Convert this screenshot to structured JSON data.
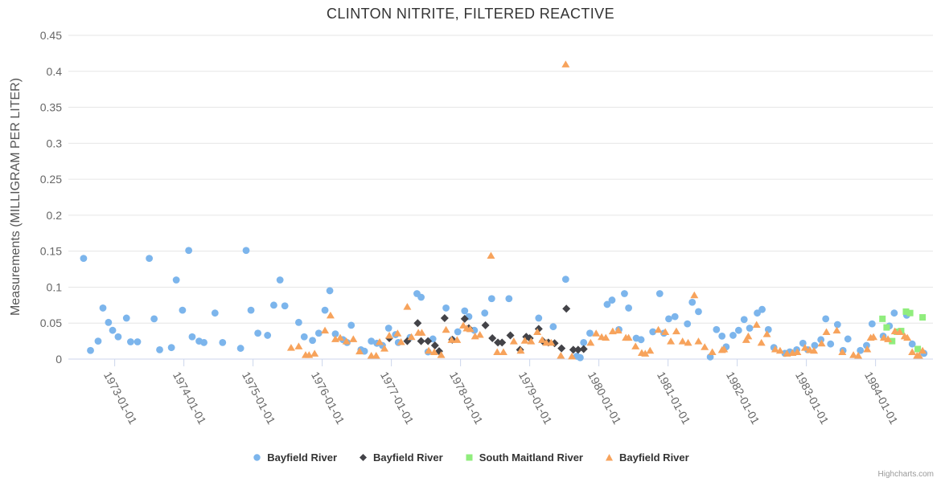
{
  "chart_data": {
    "type": "scatter",
    "title": "CLINTON NITRITE, FILTERED REACTIVE",
    "xlabel": "",
    "ylabel": "Measurements (MILLIGRAM PER LITER)",
    "credits": "Highcharts.com",
    "grid": true,
    "legend_position": "bottom",
    "xlim": [
      1972.33,
      1984.83
    ],
    "ylim": [
      0,
      0.45
    ],
    "y_ticks": [
      0,
      0.05,
      0.1,
      0.15,
      0.2,
      0.25,
      0.3,
      0.35,
      0.4,
      0.45
    ],
    "x_ticks": [
      {
        "year": 1973,
        "label": "1973-01-01"
      },
      {
        "year": 1974,
        "label": "1974-01-01"
      },
      {
        "year": 1975,
        "label": "1975-01-01"
      },
      {
        "year": 1976,
        "label": "1976-01-01"
      },
      {
        "year": 1977,
        "label": "1977-01-01"
      },
      {
        "year": 1978,
        "label": "1978-01-01"
      },
      {
        "year": 1979,
        "label": "1979-01-01"
      },
      {
        "year": 1980,
        "label": "1980-01-01"
      },
      {
        "year": 1981,
        "label": "1981-01-01"
      },
      {
        "year": 1982,
        "label": "1982-01-01"
      },
      {
        "year": 1983,
        "label": "1983-01-01"
      },
      {
        "year": 1984,
        "label": "1984-01-01"
      }
    ],
    "style": {
      "grid_color": "#e6e6e6",
      "axis_line_color": "#ccd6eb",
      "tick_label_color": "#666666",
      "title_color": "#333333"
    },
    "series": [
      {
        "name": "Bayfield River",
        "marker": "circle",
        "color": "#7cb5ec",
        "data": [
          [
            1972.55,
            0.14
          ],
          [
            1972.65,
            0.012
          ],
          [
            1972.76,
            0.025
          ],
          [
            1972.83,
            0.071
          ],
          [
            1972.91,
            0.051
          ],
          [
            1972.97,
            0.04
          ],
          [
            1973.05,
            0.031
          ],
          [
            1973.17,
            0.057
          ],
          [
            1973.23,
            0.024
          ],
          [
            1973.33,
            0.024
          ],
          [
            1973.5,
            0.14
          ],
          [
            1973.57,
            0.056
          ],
          [
            1973.65,
            0.013
          ],
          [
            1973.82,
            0.016
          ],
          [
            1973.89,
            0.11
          ],
          [
            1973.98,
            0.068
          ],
          [
            1974.07,
            0.151
          ],
          [
            1974.12,
            0.031
          ],
          [
            1974.22,
            0.025
          ],
          [
            1974.29,
            0.023
          ],
          [
            1974.45,
            0.064
          ],
          [
            1974.56,
            0.023
          ],
          [
            1974.82,
            0.015
          ],
          [
            1974.9,
            0.151
          ],
          [
            1974.97,
            0.068
          ],
          [
            1975.07,
            0.036
          ],
          [
            1975.21,
            0.033
          ],
          [
            1975.3,
            0.075
          ],
          [
            1975.39,
            0.11
          ],
          [
            1975.46,
            0.074
          ],
          [
            1975.66,
            0.051
          ],
          [
            1975.74,
            0.031
          ],
          [
            1975.86,
            0.026
          ],
          [
            1975.95,
            0.036
          ],
          [
            1976.04,
            0.068
          ],
          [
            1976.11,
            0.095
          ],
          [
            1976.19,
            0.035
          ],
          [
            1976.3,
            0.027
          ],
          [
            1976.36,
            0.023
          ],
          [
            1976.42,
            0.047
          ],
          [
            1976.56,
            0.013
          ],
          [
            1976.61,
            0.011
          ],
          [
            1976.71,
            0.025
          ],
          [
            1976.79,
            0.022
          ],
          [
            1976.87,
            0.019
          ],
          [
            1976.96,
            0.043
          ],
          [
            1977.06,
            0.034
          ],
          [
            1977.1,
            0.023
          ],
          [
            1977.27,
            0.03
          ],
          [
            1977.37,
            0.091
          ],
          [
            1977.43,
            0.086
          ],
          [
            1977.53,
            0.01
          ],
          [
            1977.6,
            0.028
          ],
          [
            1977.79,
            0.071
          ],
          [
            1977.88,
            0.027
          ],
          [
            1977.96,
            0.038
          ],
          [
            1978.06,
            0.067
          ],
          [
            1978.12,
            0.059
          ],
          [
            1978.2,
            0.04
          ],
          [
            1978.35,
            0.064
          ],
          [
            1978.45,
            0.084
          ],
          [
            1978.7,
            0.084
          ],
          [
            1979.13,
            0.057
          ],
          [
            1979.34,
            0.045
          ],
          [
            1979.52,
            0.111
          ],
          [
            1979.68,
            0.004
          ],
          [
            1979.73,
            0.002
          ],
          [
            1979.78,
            0.023
          ],
          [
            1979.87,
            0.036
          ],
          [
            1980.12,
            0.076
          ],
          [
            1980.19,
            0.082
          ],
          [
            1980.29,
            0.041
          ],
          [
            1980.37,
            0.091
          ],
          [
            1980.43,
            0.071
          ],
          [
            1980.54,
            0.029
          ],
          [
            1980.61,
            0.027
          ],
          [
            1980.78,
            0.038
          ],
          [
            1980.88,
            0.091
          ],
          [
            1980.94,
            0.036
          ],
          [
            1981.01,
            0.056
          ],
          [
            1981.1,
            0.059
          ],
          [
            1981.28,
            0.049
          ],
          [
            1981.35,
            0.079
          ],
          [
            1981.44,
            0.066
          ],
          [
            1981.61,
            0.003
          ],
          [
            1981.7,
            0.041
          ],
          [
            1981.78,
            0.032
          ],
          [
            1981.84,
            0.017
          ],
          [
            1981.94,
            0.033
          ],
          [
            1982.02,
            0.04
          ],
          [
            1982.1,
            0.055
          ],
          [
            1982.18,
            0.043
          ],
          [
            1982.29,
            0.064
          ],
          [
            1982.36,
            0.069
          ],
          [
            1982.45,
            0.041
          ],
          [
            1982.53,
            0.016
          ],
          [
            1982.69,
            0.008
          ],
          [
            1982.76,
            0.01
          ],
          [
            1982.86,
            0.013
          ],
          [
            1982.95,
            0.022
          ],
          [
            1983.02,
            0.013
          ],
          [
            1983.12,
            0.019
          ],
          [
            1983.21,
            0.027
          ],
          [
            1983.28,
            0.056
          ],
          [
            1983.35,
            0.021
          ],
          [
            1983.45,
            0.048
          ],
          [
            1983.53,
            0.012
          ],
          [
            1983.6,
            0.028
          ],
          [
            1983.78,
            0.012
          ],
          [
            1983.87,
            0.019
          ],
          [
            1983.95,
            0.049
          ],
          [
            1984.11,
            0.032
          ],
          [
            1984.2,
            0.046
          ],
          [
            1984.27,
            0.064
          ],
          [
            1984.45,
            0.061
          ],
          [
            1984.53,
            0.021
          ],
          [
            1984.7,
            0.008
          ]
        ]
      },
      {
        "name": "Bayfield River",
        "marker": "diamond",
        "color": "#434348",
        "data": [
          [
            1976.97,
            0.029
          ],
          [
            1977.23,
            0.025
          ],
          [
            1977.38,
            0.05
          ],
          [
            1977.43,
            0.025
          ],
          [
            1977.53,
            0.025
          ],
          [
            1977.63,
            0.019
          ],
          [
            1977.69,
            0.011
          ],
          [
            1977.77,
            0.057
          ],
          [
            1977.88,
            0.027
          ],
          [
            1978.06,
            0.056
          ],
          [
            1978.12,
            0.043
          ],
          [
            1978.36,
            0.047
          ],
          [
            1978.46,
            0.029
          ],
          [
            1978.54,
            0.023
          ],
          [
            1978.6,
            0.023
          ],
          [
            1978.72,
            0.033
          ],
          [
            1978.86,
            0.013
          ],
          [
            1978.95,
            0.031
          ],
          [
            1979.0,
            0.029
          ],
          [
            1979.13,
            0.042
          ],
          [
            1979.19,
            0.025
          ],
          [
            1979.27,
            0.023
          ],
          [
            1979.36,
            0.022
          ],
          [
            1979.46,
            0.015
          ],
          [
            1979.53,
            0.07
          ],
          [
            1979.63,
            0.013
          ],
          [
            1979.7,
            0.013
          ],
          [
            1979.78,
            0.014
          ]
        ]
      },
      {
        "name": "South Maitland River",
        "marker": "square",
        "color": "#90ed7d",
        "data": [
          [
            1984.1,
            0.056
          ],
          [
            1984.16,
            0.044
          ],
          [
            1984.24,
            0.025
          ],
          [
            1984.31,
            0.038
          ],
          [
            1984.37,
            0.039
          ],
          [
            1984.44,
            0.066
          ],
          [
            1984.5,
            0.064
          ],
          [
            1984.61,
            0.014
          ],
          [
            1984.68,
            0.058
          ]
        ]
      },
      {
        "name": "Bayfield River",
        "marker": "triangle",
        "color": "#f7a35c",
        "data": [
          [
            1975.55,
            0.016
          ],
          [
            1975.66,
            0.018
          ],
          [
            1975.76,
            0.006
          ],
          [
            1975.81,
            0.006
          ],
          [
            1975.89,
            0.008
          ],
          [
            1976.04,
            0.04
          ],
          [
            1976.12,
            0.061
          ],
          [
            1976.19,
            0.028
          ],
          [
            1976.26,
            0.03
          ],
          [
            1976.35,
            0.025
          ],
          [
            1976.45,
            0.028
          ],
          [
            1976.54,
            0.011
          ],
          [
            1976.71,
            0.005
          ],
          [
            1976.78,
            0.005
          ],
          [
            1976.83,
            0.024
          ],
          [
            1976.9,
            0.015
          ],
          [
            1976.97,
            0.033
          ],
          [
            1977.09,
            0.036
          ],
          [
            1977.14,
            0.024
          ],
          [
            1977.23,
            0.073
          ],
          [
            1977.29,
            0.031
          ],
          [
            1977.39,
            0.037
          ],
          [
            1977.44,
            0.037
          ],
          [
            1977.54,
            0.012
          ],
          [
            1977.62,
            0.01
          ],
          [
            1977.72,
            0.006
          ],
          [
            1977.79,
            0.041
          ],
          [
            1977.87,
            0.027
          ],
          [
            1977.95,
            0.027
          ],
          [
            1978.04,
            0.047
          ],
          [
            1978.09,
            0.043
          ],
          [
            1978.14,
            0.042
          ],
          [
            1978.21,
            0.032
          ],
          [
            1978.28,
            0.034
          ],
          [
            1978.44,
            0.144
          ],
          [
            1978.53,
            0.01
          ],
          [
            1978.62,
            0.01
          ],
          [
            1978.77,
            0.025
          ],
          [
            1978.87,
            0.012
          ],
          [
            1978.93,
            0.026
          ],
          [
            1979.02,
            0.025
          ],
          [
            1979.11,
            0.038
          ],
          [
            1979.18,
            0.027
          ],
          [
            1979.24,
            0.023
          ],
          [
            1979.31,
            0.023
          ],
          [
            1979.45,
            0.005
          ],
          [
            1979.52,
            0.41
          ],
          [
            1979.61,
            0.004
          ],
          [
            1979.88,
            0.023
          ],
          [
            1979.96,
            0.036
          ],
          [
            1980.04,
            0.031
          ],
          [
            1980.1,
            0.03
          ],
          [
            1980.2,
            0.039
          ],
          [
            1980.28,
            0.04
          ],
          [
            1980.39,
            0.03
          ],
          [
            1980.43,
            0.03
          ],
          [
            1980.53,
            0.018
          ],
          [
            1980.62,
            0.009
          ],
          [
            1980.67,
            0.008
          ],
          [
            1980.74,
            0.012
          ],
          [
            1980.86,
            0.041
          ],
          [
            1980.96,
            0.038
          ],
          [
            1981.04,
            0.025
          ],
          [
            1981.12,
            0.039
          ],
          [
            1981.21,
            0.025
          ],
          [
            1981.29,
            0.023
          ],
          [
            1981.38,
            0.089
          ],
          [
            1981.44,
            0.025
          ],
          [
            1981.53,
            0.017
          ],
          [
            1981.64,
            0.01
          ],
          [
            1981.78,
            0.013
          ],
          [
            1981.81,
            0.014
          ],
          [
            1982.13,
            0.027
          ],
          [
            1982.16,
            0.032
          ],
          [
            1982.28,
            0.048
          ],
          [
            1982.35,
            0.023
          ],
          [
            1982.43,
            0.035
          ],
          [
            1982.55,
            0.014
          ],
          [
            1982.62,
            0.012
          ],
          [
            1982.72,
            0.008
          ],
          [
            1982.8,
            0.009
          ],
          [
            1982.87,
            0.01
          ],
          [
            1982.98,
            0.016
          ],
          [
            1983.05,
            0.013
          ],
          [
            1983.11,
            0.012
          ],
          [
            1983.22,
            0.022
          ],
          [
            1983.29,
            0.038
          ],
          [
            1983.44,
            0.04
          ],
          [
            1983.52,
            0.01
          ],
          [
            1983.68,
            0.006
          ],
          [
            1983.75,
            0.005
          ],
          [
            1983.88,
            0.014
          ],
          [
            1983.93,
            0.03
          ],
          [
            1983.97,
            0.031
          ],
          [
            1984.12,
            0.03
          ],
          [
            1984.18,
            0.028
          ],
          [
            1984.28,
            0.039
          ],
          [
            1984.35,
            0.038
          ],
          [
            1984.42,
            0.032
          ],
          [
            1984.46,
            0.03
          ],
          [
            1984.53,
            0.01
          ],
          [
            1984.6,
            0.005
          ],
          [
            1984.63,
            0.005
          ],
          [
            1984.68,
            0.012
          ]
        ]
      }
    ]
  }
}
